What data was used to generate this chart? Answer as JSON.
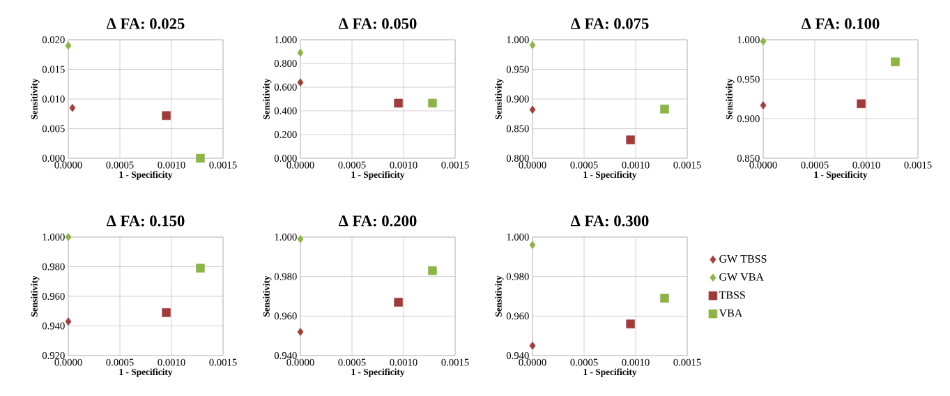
{
  "chart_data": [
    {
      "type": "scatter",
      "title": "Δ FA: 0.025",
      "xlabel": "1 - Specificity",
      "ylabel": "Sensitivity",
      "xlim": [
        0,
        0.0015
      ],
      "ylim": [
        0,
        0.02
      ],
      "xticks": [
        {
          "value": 0,
          "label": "0.0000"
        },
        {
          "value": 0.0005,
          "label": "0.0005"
        },
        {
          "value": 0.001,
          "label": "0.0010"
        },
        {
          "value": 0.0015,
          "label": "0.0015"
        }
      ],
      "yticks": [
        {
          "value": 0,
          "label": "0.000"
        },
        {
          "value": 0.005,
          "label": "0.005"
        },
        {
          "value": 0.01,
          "label": "0.010"
        },
        {
          "value": 0.015,
          "label": "0.015"
        },
        {
          "value": 0.02,
          "label": "0.020"
        }
      ],
      "grid": true,
      "series": [
        {
          "color": "#a0403c",
          "marker": "diamond",
          "x": [
            4e-05
          ],
          "values": [
            0.0085
          ]
        },
        {
          "color": "#8db545",
          "marker": "diamond",
          "x": [
            0.0
          ],
          "values": [
            0.019
          ]
        },
        {
          "color": "#a33a3a",
          "marker": "square",
          "x": [
            0.00095
          ],
          "values": [
            0.0072
          ]
        },
        {
          "color": "#8db545",
          "marker": "square",
          "x": [
            0.00128
          ],
          "values": [
            0.0
          ]
        }
      ]
    },
    {
      "type": "scatter",
      "title": "Δ FA: 0.050",
      "xlabel": "1 - Specificity",
      "ylabel": "Sensitivity",
      "xlim": [
        0,
        0.0015
      ],
      "ylim": [
        0,
        1
      ],
      "xticks": [
        {
          "value": 0,
          "label": "0.0000"
        },
        {
          "value": 0.0005,
          "label": "0.0005"
        },
        {
          "value": 0.001,
          "label": "0.0010"
        },
        {
          "value": 0.0015,
          "label": "0.0015"
        }
      ],
      "yticks": [
        {
          "value": 0,
          "label": "0.000"
        },
        {
          "value": 0.2,
          "label": "0.200"
        },
        {
          "value": 0.4,
          "label": "0.400"
        },
        {
          "value": 0.6,
          "label": "0.600"
        },
        {
          "value": 0.8,
          "label": "0.800"
        },
        {
          "value": 1,
          "label": "1.000"
        }
      ],
      "grid": true,
      "series": [
        {
          "color": "#a0403c",
          "marker": "diamond",
          "x": [
            0.0
          ],
          "values": [
            0.64
          ]
        },
        {
          "color": "#8db545",
          "marker": "diamond",
          "x": [
            0.0
          ],
          "values": [
            0.89
          ]
        },
        {
          "color": "#a33a3a",
          "marker": "square",
          "x": [
            0.00095
          ],
          "values": [
            0.465
          ]
        },
        {
          "color": "#8db545",
          "marker": "square",
          "x": [
            0.00128
          ],
          "values": [
            0.465
          ]
        }
      ]
    },
    {
      "type": "scatter",
      "title": "Δ FA: 0.075",
      "xlabel": "1 - Specificity",
      "ylabel": "Sensitivity",
      "xlim": [
        0,
        0.0015
      ],
      "ylim": [
        0.8,
        1
      ],
      "xticks": [
        {
          "value": 0,
          "label": "0.0000"
        },
        {
          "value": 0.0005,
          "label": "0.0005"
        },
        {
          "value": 0.001,
          "label": "0.0010"
        },
        {
          "value": 0.0015,
          "label": "0.0015"
        }
      ],
      "yticks": [
        {
          "value": 0.8,
          "label": "0.800"
        },
        {
          "value": 0.85,
          "label": "0.850"
        },
        {
          "value": 0.9,
          "label": "0.900"
        },
        {
          "value": 0.95,
          "label": "0.950"
        },
        {
          "value": 1,
          "label": "1.000"
        }
      ],
      "grid": true,
      "series": [
        {
          "color": "#a0403c",
          "marker": "diamond",
          "x": [
            0.0
          ],
          "values": [
            0.882
          ]
        },
        {
          "color": "#8db545",
          "marker": "diamond",
          "x": [
            0.0
          ],
          "values": [
            0.991
          ]
        },
        {
          "color": "#a33a3a",
          "marker": "square",
          "x": [
            0.00095
          ],
          "values": [
            0.831
          ]
        },
        {
          "color": "#8db545",
          "marker": "square",
          "x": [
            0.00128
          ],
          "values": [
            0.883
          ]
        }
      ]
    },
    {
      "type": "scatter",
      "title": "Δ FA: 0.100",
      "xlabel": "1 - Specificity",
      "ylabel": "Sensitivity",
      "xlim": [
        0,
        0.0015
      ],
      "ylim": [
        0.85,
        1
      ],
      "xticks": [
        {
          "value": 0,
          "label": "0.0000"
        },
        {
          "value": 0.0005,
          "label": "0.0005"
        },
        {
          "value": 0.001,
          "label": "0.0010"
        },
        {
          "value": 0.0015,
          "label": "0.0015"
        }
      ],
      "yticks": [
        {
          "value": 0.85,
          "label": "0.850"
        },
        {
          "value": 0.9,
          "label": "0.900"
        },
        {
          "value": 0.95,
          "label": "0.950"
        },
        {
          "value": 1,
          "label": "1.000"
        }
      ],
      "grid": true,
      "series": [
        {
          "color": "#a0403c",
          "marker": "diamond",
          "x": [
            0.0
          ],
          "values": [
            0.917
          ]
        },
        {
          "color": "#8db545",
          "marker": "diamond",
          "x": [
            0.0
          ],
          "values": [
            0.998
          ]
        },
        {
          "color": "#a33a3a",
          "marker": "square",
          "x": [
            0.00095
          ],
          "values": [
            0.919
          ]
        },
        {
          "color": "#8db545",
          "marker": "square",
          "x": [
            0.00128
          ],
          "values": [
            0.972
          ]
        }
      ]
    },
    {
      "type": "scatter",
      "title": "Δ FA: 0.150",
      "xlabel": "1 - Specificity",
      "ylabel": "Sensitivity",
      "xlim": [
        0,
        0.0015
      ],
      "ylim": [
        0.92,
        1
      ],
      "xticks": [
        {
          "value": 0,
          "label": "0.0000"
        },
        {
          "value": 0.0005,
          "label": "0.0005"
        },
        {
          "value": 0.001,
          "label": "0.0010"
        },
        {
          "value": 0.0015,
          "label": "0.0015"
        }
      ],
      "yticks": [
        {
          "value": 0.92,
          "label": "0.920"
        },
        {
          "value": 0.94,
          "label": "0.940"
        },
        {
          "value": 0.96,
          "label": "0.960"
        },
        {
          "value": 0.98,
          "label": "0.980"
        },
        {
          "value": 1,
          "label": "1.000"
        }
      ],
      "grid": true,
      "series": [
        {
          "color": "#a0403c",
          "marker": "diamond",
          "x": [
            0.0
          ],
          "values": [
            0.943
          ]
        },
        {
          "color": "#8db545",
          "marker": "diamond",
          "x": [
            0.0
          ],
          "values": [
            1.0
          ]
        },
        {
          "color": "#a33a3a",
          "marker": "square",
          "x": [
            0.00095
          ],
          "values": [
            0.949
          ]
        },
        {
          "color": "#8db545",
          "marker": "square",
          "x": [
            0.00128
          ],
          "values": [
            0.979
          ]
        }
      ]
    },
    {
      "type": "scatter",
      "title": "Δ FA: 0.200",
      "xlabel": "1 - Specificity",
      "ylabel": "Sensitivity",
      "xlim": [
        0,
        0.0015
      ],
      "ylim": [
        0.94,
        1
      ],
      "xticks": [
        {
          "value": 0,
          "label": "0.0000"
        },
        {
          "value": 0.0005,
          "label": "0.0005"
        },
        {
          "value": 0.001,
          "label": "0.0010"
        },
        {
          "value": 0.0015,
          "label": "0.0015"
        }
      ],
      "yticks": [
        {
          "value": 0.94,
          "label": "0.940"
        },
        {
          "value": 0.96,
          "label": "0.960"
        },
        {
          "value": 0.98,
          "label": "0.980"
        },
        {
          "value": 1,
          "label": "1.000"
        }
      ],
      "grid": true,
      "series": [
        {
          "color": "#a0403c",
          "marker": "diamond",
          "x": [
            0.0
          ],
          "values": [
            0.952
          ]
        },
        {
          "color": "#8db545",
          "marker": "diamond",
          "x": [
            0.0
          ],
          "values": [
            0.999
          ]
        },
        {
          "color": "#a33a3a",
          "marker": "square",
          "x": [
            0.00095
          ],
          "values": [
            0.967
          ]
        },
        {
          "color": "#8db545",
          "marker": "square",
          "x": [
            0.00128
          ],
          "values": [
            0.983
          ]
        }
      ]
    },
    {
      "type": "scatter",
      "title": "Δ FA: 0.300",
      "xlabel": "1 - Specificity",
      "ylabel": "Sensitivity",
      "xlim": [
        0,
        0.0015
      ],
      "ylim": [
        0.94,
        1
      ],
      "xticks": [
        {
          "value": 0,
          "label": "0.0000"
        },
        {
          "value": 0.0005,
          "label": "0.0005"
        },
        {
          "value": 0.001,
          "label": "0.0010"
        },
        {
          "value": 0.0015,
          "label": "0.0015"
        }
      ],
      "yticks": [
        {
          "value": 0.94,
          "label": "0.940"
        },
        {
          "value": 0.96,
          "label": "0.960"
        },
        {
          "value": 0.98,
          "label": "0.980"
        },
        {
          "value": 1,
          "label": "1.000"
        }
      ],
      "grid": true,
      "legend": "right",
      "series": [
        {
          "name": "GW TBSS",
          "color": "#a0403c",
          "marker": "diamond",
          "x": [
            0.0
          ],
          "values": [
            0.945
          ]
        },
        {
          "name": "GW VBA",
          "color": "#8db545",
          "marker": "diamond",
          "x": [
            0.0
          ],
          "values": [
            0.996
          ]
        },
        {
          "name": "TBSS",
          "color": "#a33a3a",
          "marker": "square",
          "x": [
            0.00095
          ],
          "values": [
            0.956
          ]
        },
        {
          "name": "VBA",
          "color": "#8db545",
          "marker": "square",
          "x": [
            0.00128
          ],
          "values": [
            0.969
          ]
        }
      ]
    }
  ]
}
